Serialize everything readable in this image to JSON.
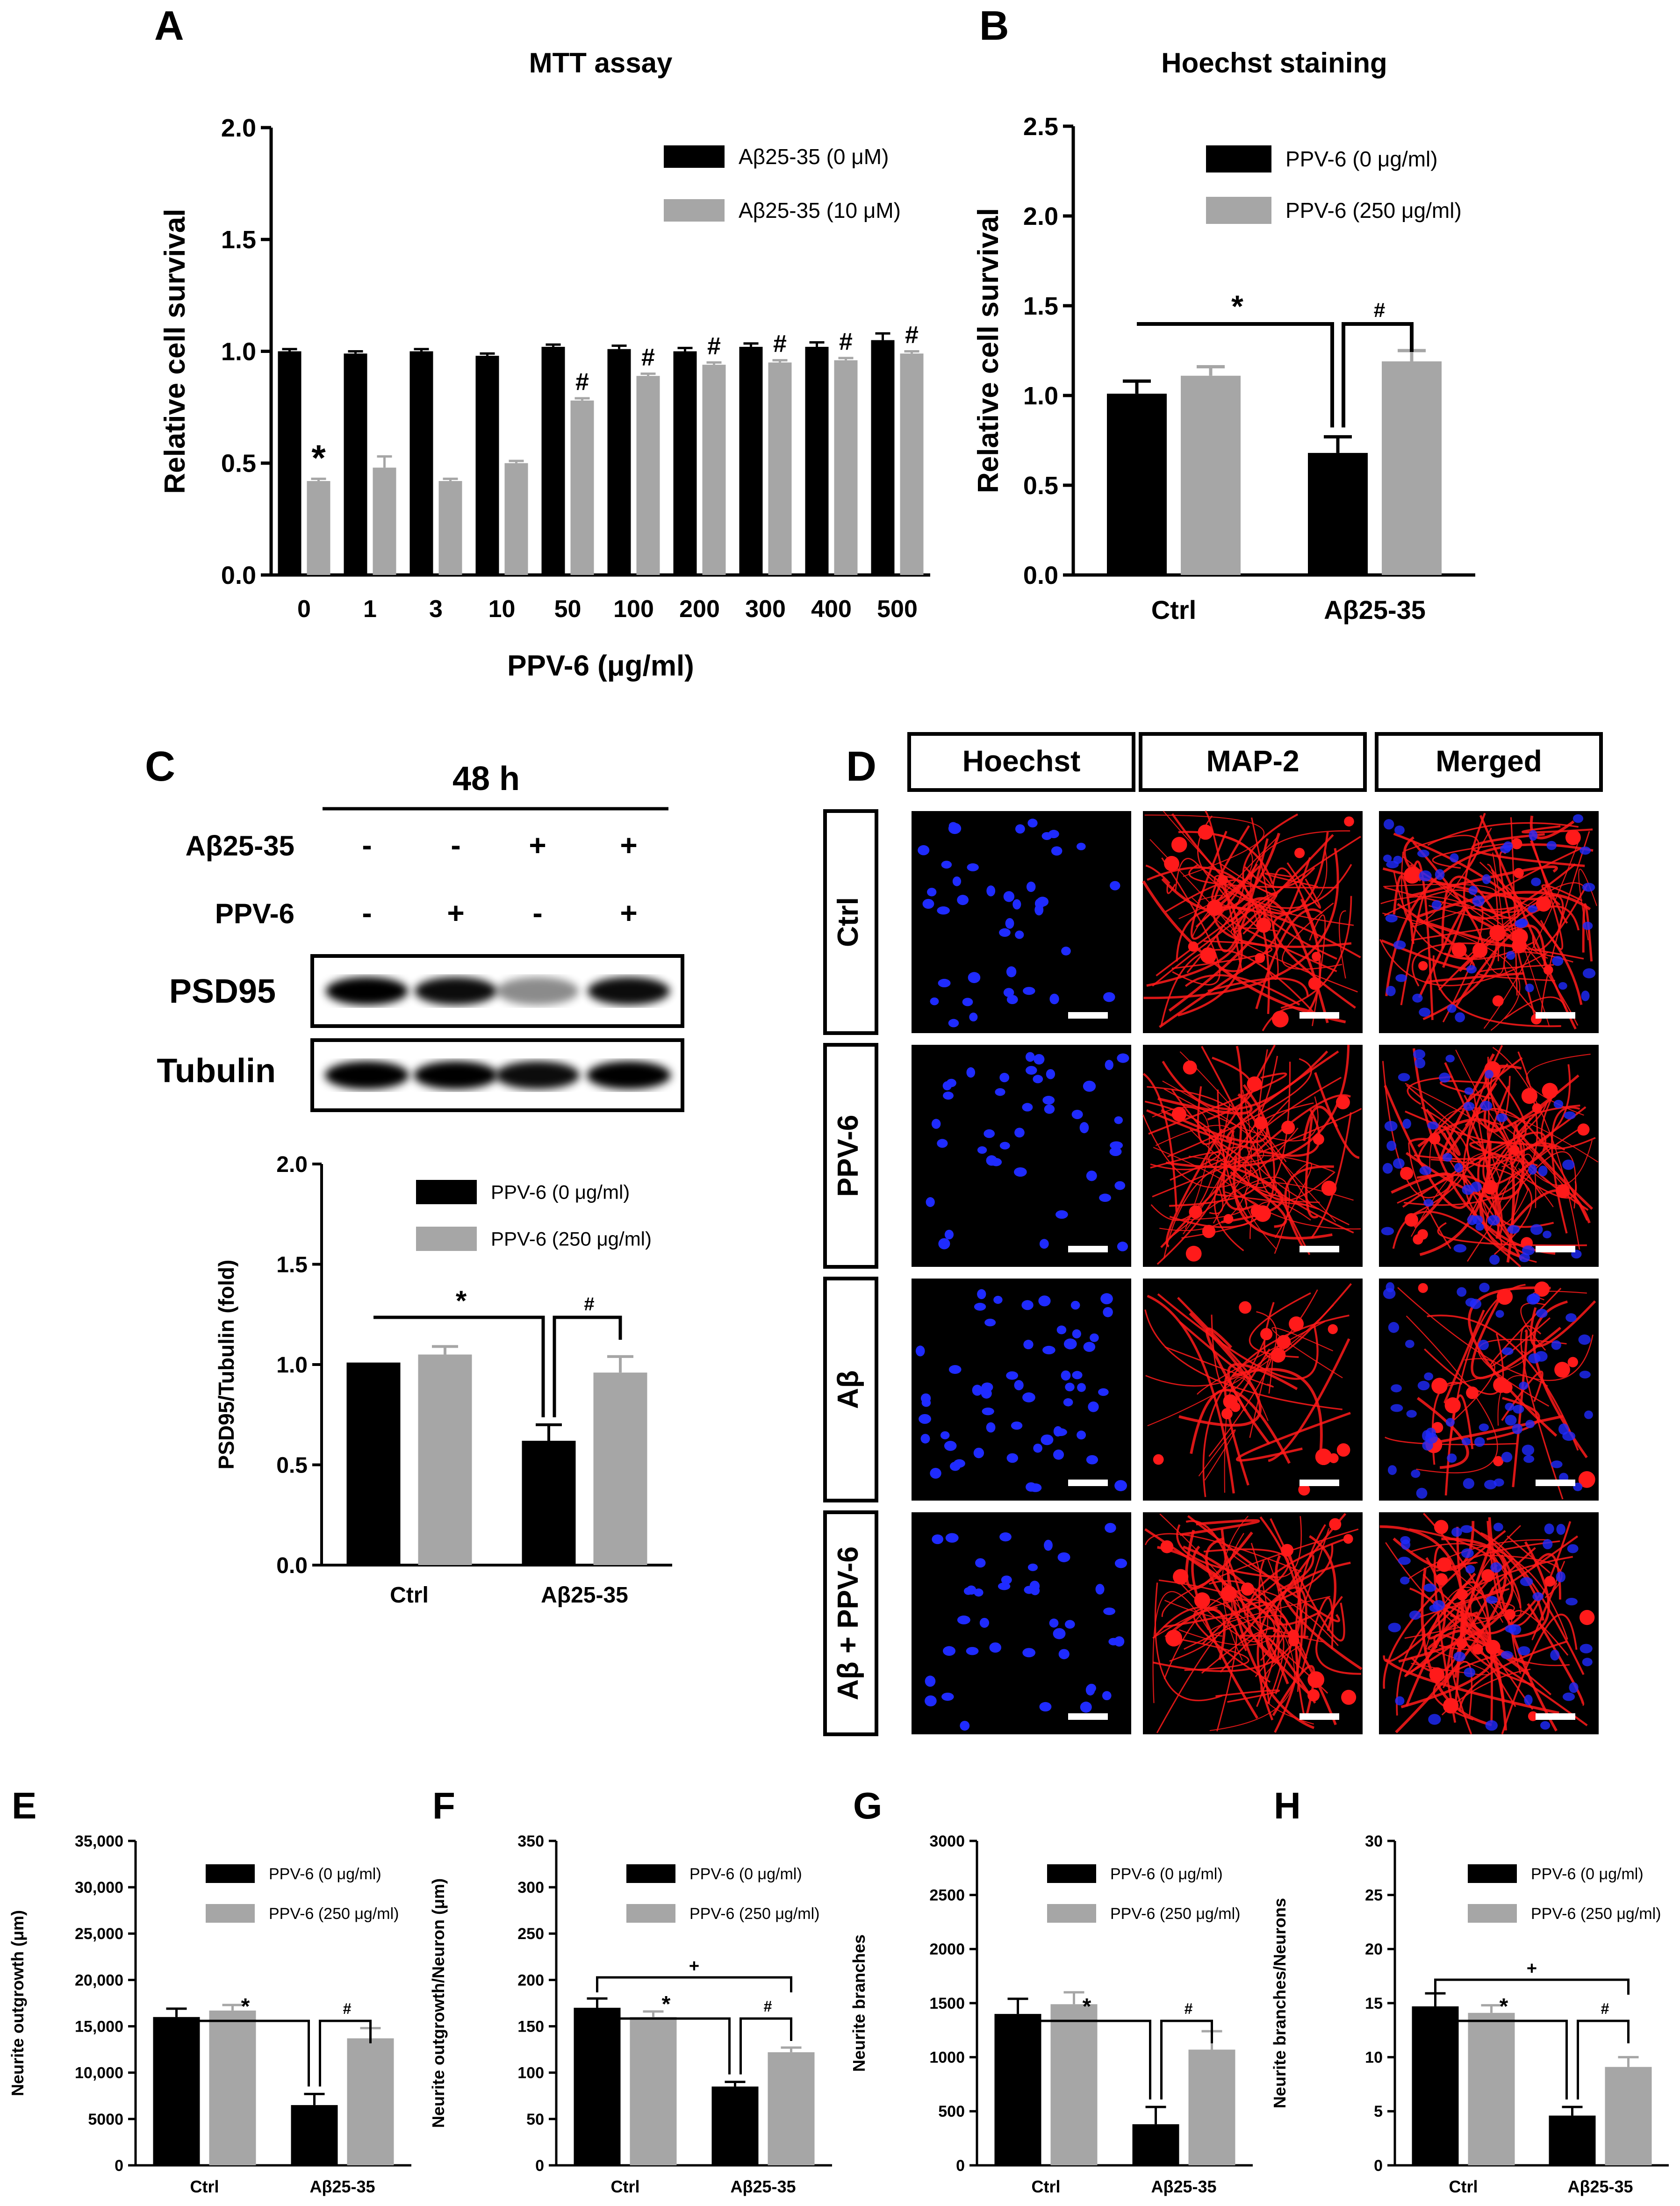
{
  "colors": {
    "black_bar": "#000000",
    "grey_bar": "#a6a6a6",
    "red_cells": "#ff1a1a",
    "blue_nuclei": "#1f2bff"
  },
  "chart_data": [
    {
      "id": "A",
      "type": "bar",
      "title": "MTT assay",
      "xlabel": "PPV-6 (μg/ml)",
      "ylabel": "Relative cell survival",
      "ylim": [
        0,
        2.0
      ],
      "yticks": [
        "0.0",
        "0.5",
        "1.0",
        "1.5",
        "2.0"
      ],
      "categories": [
        "0",
        "1",
        "3",
        "10",
        "50",
        "100",
        "200",
        "300",
        "400",
        "500"
      ],
      "series": [
        {
          "name": "Aβ25-35 (0 μM)",
          "values": [
            1.0,
            0.99,
            1.0,
            0.98,
            1.02,
            1.01,
            1.0,
            1.02,
            1.02,
            1.05
          ],
          "errors": [
            0.01,
            0.01,
            0.01,
            0.01,
            0.01,
            0.015,
            0.015,
            0.015,
            0.02,
            0.03
          ]
        },
        {
          "name": "Aβ25-35 (10 μM)",
          "values": [
            0.42,
            0.48,
            0.42,
            0.5,
            0.78,
            0.89,
            0.94,
            0.95,
            0.96,
            0.99
          ],
          "errors": [
            0.01,
            0.05,
            0.01,
            0.01,
            0.01,
            0.01,
            0.01,
            0.01,
            0.01,
            0.01
          ]
        }
      ],
      "annotations": [
        {
          "text": "*",
          "category": 0,
          "series": 1
        },
        {
          "text": "#",
          "category": 4,
          "series": 1
        },
        {
          "text": "#",
          "category": 5,
          "series": 1
        },
        {
          "text": "#",
          "category": 6,
          "series": 1
        },
        {
          "text": "#",
          "category": 7,
          "series": 1
        },
        {
          "text": "#",
          "category": 8,
          "series": 1
        },
        {
          "text": "#",
          "category": 9,
          "series": 1
        }
      ],
      "legend": "top-right"
    },
    {
      "id": "B",
      "type": "bar",
      "title": "Hoechst staining",
      "xlabel": "",
      "ylabel": "Relative cell survival",
      "ylim": [
        0,
        2.5
      ],
      "yticks": [
        "0.0",
        "0.5",
        "1.0",
        "1.5",
        "2.0",
        "2.5"
      ],
      "categories": [
        "Ctrl",
        "Aβ25-35"
      ],
      "series": [
        {
          "name": "PPV-6 (0 μg/ml)",
          "values": [
            1.01,
            0.68
          ],
          "errors": [
            0.07,
            0.09
          ]
        },
        {
          "name": "PPV-6 (250 μg/ml)",
          "values": [
            1.11,
            1.19
          ],
          "errors": [
            0.05,
            0.06
          ]
        }
      ],
      "sig_star": "*",
      "sig_hash": "#",
      "sig_plus": "",
      "legend": "top-right"
    },
    {
      "id": "C",
      "type": "bar",
      "title": "",
      "xlabel": "",
      "ylabel": "PSD95/Tubulin (fold)",
      "ylim": [
        0,
        2.0
      ],
      "yticks": [
        "0.0",
        "0.5",
        "1.0",
        "1.5",
        "2.0"
      ],
      "categories": [
        "Ctrl",
        "Aβ25-35"
      ],
      "series": [
        {
          "name": "PPV-6 (0 μg/ml)",
          "values": [
            1.01,
            0.62
          ],
          "errors": [
            0.0,
            0.08
          ]
        },
        {
          "name": "PPV-6 (250 μg/ml)",
          "values": [
            1.05,
            0.96
          ],
          "errors": [
            0.04,
            0.08
          ]
        }
      ],
      "sig_star": "*",
      "sig_hash": "#",
      "sig_plus": "",
      "legend": "top-right"
    },
    {
      "id": "E",
      "type": "bar",
      "title": "",
      "xlabel": "",
      "ylabel": "Neurite outgrowth (μm)",
      "ylim": [
        0,
        35000
      ],
      "yticks": [
        "0",
        "5000",
        "10,000",
        "15,000",
        "20,000",
        "25,000",
        "30,000",
        "35,000"
      ],
      "categories": [
        "Ctrl",
        "Aβ25-35"
      ],
      "series": [
        {
          "name": "PPV-6 (0 μg/ml)",
          "values": [
            16000,
            6500
          ],
          "errors": [
            900,
            1200
          ]
        },
        {
          "name": "PPV-6 (250 μg/ml)",
          "values": [
            16700,
            13700
          ],
          "errors": [
            600,
            1100
          ]
        }
      ],
      "sig_star": "*",
      "sig_hash": "#",
      "sig_plus": "",
      "legend": "top-right"
    },
    {
      "id": "F",
      "type": "bar",
      "title": "",
      "xlabel": "",
      "ylabel": "Neurite outgrowth/Neuron  (μm)",
      "ylim": [
        0,
        350
      ],
      "yticks": [
        "0",
        "50",
        "100",
        "150",
        "200",
        "250",
        "300",
        "350"
      ],
      "categories": [
        "Ctrl",
        "Aβ25-35"
      ],
      "series": [
        {
          "name": "PPV-6 (0 μg/ml)",
          "values": [
            170,
            85
          ],
          "errors": [
            10,
            5
          ]
        },
        {
          "name": "PPV-6 (250 μg/ml)",
          "values": [
            160,
            122
          ],
          "errors": [
            6,
            5
          ]
        }
      ],
      "sig_star": "*",
      "sig_hash": "#",
      "sig_plus": "+",
      "legend": "top-right"
    },
    {
      "id": "G",
      "type": "bar",
      "title": "",
      "xlabel": "",
      "ylabel": "Neurite branches",
      "ylim": [
        0,
        3000
      ],
      "yticks": [
        "0",
        "500",
        "1000",
        "1500",
        "2000",
        "2500",
        "3000"
      ],
      "categories": [
        "Ctrl",
        "Aβ25-35"
      ],
      "series": [
        {
          "name": "PPV-6 (0 μg/ml)",
          "values": [
            1400,
            380
          ],
          "errors": [
            140,
            160
          ]
        },
        {
          "name": "PPV-6 (250 μg/ml)",
          "values": [
            1490,
            1070
          ],
          "errors": [
            110,
            170
          ]
        }
      ],
      "sig_star": "*",
      "sig_hash": "#",
      "sig_plus": "",
      "legend": "top-right"
    },
    {
      "id": "H",
      "type": "bar",
      "title": "",
      "xlabel": "",
      "ylabel": "Neurite branches/Neurons",
      "ylim": [
        0,
        30
      ],
      "yticks": [
        "0",
        "5",
        "10",
        "15",
        "20",
        "25",
        "30"
      ],
      "categories": [
        "Ctrl",
        "Aβ25-35"
      ],
      "series": [
        {
          "name": "PPV-6 (0 μg/ml)",
          "values": [
            14.7,
            4.6
          ],
          "errors": [
            1.2,
            0.8
          ]
        },
        {
          "name": "PPV-6 (250 μg/ml)",
          "values": [
            14.1,
            9.1
          ],
          "errors": [
            0.7,
            0.9
          ]
        }
      ],
      "sig_star": "*",
      "sig_hash": "#",
      "sig_plus": "+",
      "legend": "top-right"
    }
  ],
  "panel_c_blot": {
    "label": "C",
    "time": "48 h",
    "row1_label": "Aβ25-35",
    "row1_signs": [
      "-",
      "-",
      "+",
      "+"
    ],
    "row2_label": "PPV-6",
    "row2_signs": [
      "-",
      "+",
      "-",
      "+"
    ],
    "band1_label": "PSD95",
    "band1_intensity": [
      1.0,
      0.95,
      0.45,
      0.95
    ],
    "band2_label": "Tubulin",
    "band2_intensity": [
      1.0,
      1.0,
      0.95,
      1.0
    ]
  },
  "panel_d": {
    "label": "D",
    "columns": [
      "Hoechst",
      "MAP-2",
      "Merged"
    ],
    "rows": [
      "Ctrl",
      "PPV-6",
      "Aβ",
      "Aβ + PPV-6"
    ]
  }
}
